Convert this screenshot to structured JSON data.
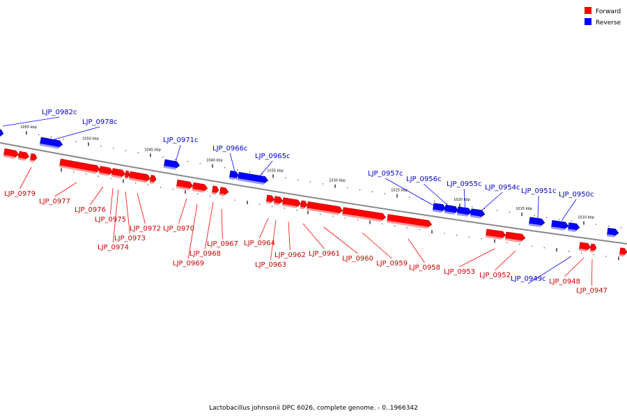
{
  "legend": {
    "forward_label": "Forward",
    "reverse_label": "Reverse",
    "forward_color": "#ff0000",
    "reverse_color": "#0000ff"
  },
  "caption": "Lactobacillus johnsonii DPC 6026, complete genome. - 0..1966342",
  "colors": {
    "backbone": "#888888",
    "forward_label": "#cc0000",
    "reverse_label": "#0000cc"
  },
  "scale": {
    "unit": "kbp",
    "ticks": [
      {
        "kbp": 1055,
        "label": "1055 kbp"
      },
      {
        "kbp": 1050,
        "label": "1050 kbp"
      },
      {
        "kbp": 1045,
        "label": "1045 kbp"
      },
      {
        "kbp": 1040,
        "label": "1040 kbp"
      },
      {
        "kbp": 1035,
        "label": "1035 kbp"
      },
      {
        "kbp": 1030,
        "label": "1030 kbp"
      },
      {
        "kbp": 1025,
        "label": "1025 kbp"
      },
      {
        "kbp": 1020,
        "label": "1020 kbp"
      },
      {
        "kbp": 1015,
        "label": "1015 kbp"
      },
      {
        "kbp": 1010,
        "label": "1010 kbp"
      }
    ]
  },
  "genes": [
    {
      "label": "LJP_0982c",
      "strand": "reverse"
    },
    {
      "label": "LJP_0978c",
      "strand": "reverse"
    },
    {
      "label": "LJP_0979",
      "strand": "forward"
    },
    {
      "label": "LJP_0977",
      "strand": "forward"
    },
    {
      "label": "LJP_0976",
      "strand": "forward"
    },
    {
      "label": "LJP_0975",
      "strand": "forward"
    },
    {
      "label": "LJP_0974",
      "strand": "forward"
    },
    {
      "label": "LJP_0973",
      "strand": "forward"
    },
    {
      "label": "LJP_0972",
      "strand": "forward"
    },
    {
      "label": "LJP_0971c",
      "strand": "reverse"
    },
    {
      "label": "LJP_0970",
      "strand": "forward"
    },
    {
      "label": "LJP_0969",
      "strand": "forward"
    },
    {
      "label": "LJP_0968",
      "strand": "forward"
    },
    {
      "label": "LJP_0967",
      "strand": "forward"
    },
    {
      "label": "LJP_0966c",
      "strand": "reverse"
    },
    {
      "label": "LJP_0965c",
      "strand": "reverse"
    },
    {
      "label": "LJP_0964",
      "strand": "forward"
    },
    {
      "label": "LJP_0963",
      "strand": "forward"
    },
    {
      "label": "LJP_0962",
      "strand": "forward"
    },
    {
      "label": "LJP_0961",
      "strand": "forward"
    },
    {
      "label": "LJP_0960",
      "strand": "forward"
    },
    {
      "label": "LJP_0959",
      "strand": "forward"
    },
    {
      "label": "LJP_0958",
      "strand": "forward"
    },
    {
      "label": "LJP_0957c",
      "strand": "reverse"
    },
    {
      "label": "LJP_0956c",
      "strand": "reverse"
    },
    {
      "label": "LJP_0955c",
      "strand": "reverse"
    },
    {
      "label": "LJP_0954c",
      "strand": "reverse"
    },
    {
      "label": "LJP_0953",
      "strand": "forward"
    },
    {
      "label": "LJP_0952",
      "strand": "forward"
    },
    {
      "label": "LJP_0951c",
      "strand": "reverse"
    },
    {
      "label": "LJP_0950c",
      "strand": "reverse"
    },
    {
      "label": "LJP_0949c",
      "strand": "reverse"
    },
    {
      "label": "LJP_0948",
      "strand": "forward"
    },
    {
      "label": "LJP_0947",
      "strand": "forward"
    }
  ]
}
